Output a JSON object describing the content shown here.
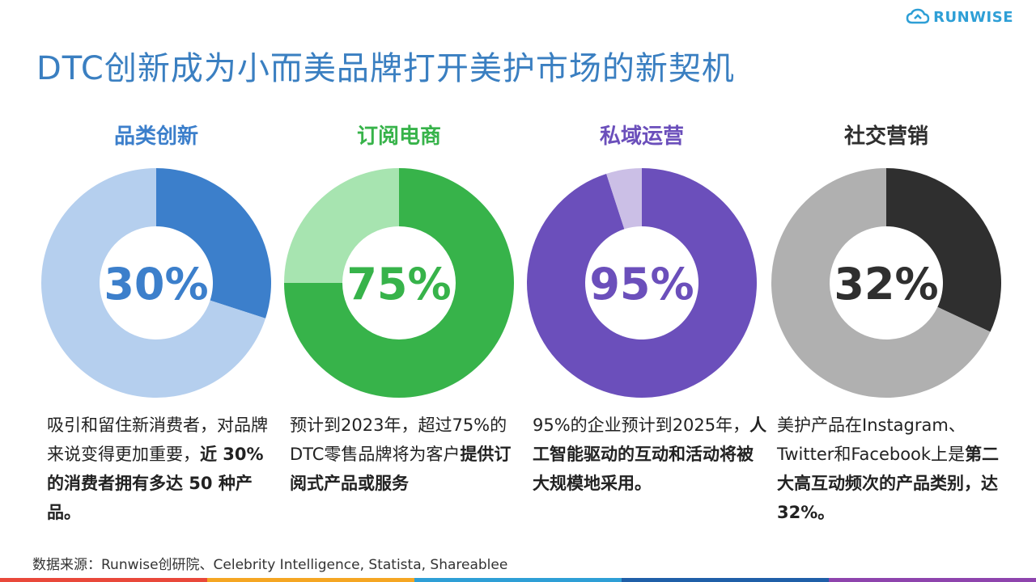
{
  "logo": {
    "text": "RUNWISE",
    "color": "#2e9fd6"
  },
  "title": {
    "text": "DTC创新成为小而美品牌打开美护市场的新契机",
    "color": "#3a7fc1"
  },
  "panels": [
    {
      "title": "品类创新",
      "percent_label": "30%",
      "accent": "#3c7fcb",
      "title_color": "#3c7fcb",
      "desc": [
        {
          "t": "吸引和留住新消费者，",
          "b": false
        },
        {
          "t": "对品牌来说变得更加",
          "b": false
        },
        {
          "t": "重要，",
          "b": false
        },
        {
          "t": "近 30% 的消费",
          "b": true
        },
        {
          "t": "者拥有多达 50 种产品。",
          "b": true
        }
      ]
    },
    {
      "title": "订阅电商",
      "percent_label": "75%",
      "accent": "#37b34a",
      "title_color": "#37b34a",
      "desc": [
        {
          "t": "预计到2023年，超过",
          "b": false
        },
        {
          "t": "75%的DTC零售品牌",
          "b": false
        },
        {
          "t": "将为客户",
          "b": false
        },
        {
          "t": "提供订阅式",
          "b": true
        },
        {
          "t": "产品或服务",
          "b": true
        }
      ]
    },
    {
      "title": "私域运营",
      "percent_label": "95%",
      "accent": "#6b4fbb",
      "title_color": "#6b4fbb",
      "desc": [
        {
          "t": "95%的企业预计到",
          "b": false
        },
        {
          "t": "2025年，",
          "b": false
        },
        {
          "t": "人工智能驱",
          "b": true
        },
        {
          "t": "动的互动和活动将被",
          "b": true
        },
        {
          "t": "大规模地采用。",
          "b": true
        }
      ]
    },
    {
      "title": "社交营销",
      "percent_label": "32%",
      "accent": "#2f2f2f",
      "title_color": "#2f2f2f",
      "desc": [
        {
          "t": "美护产品在Instagram、",
          "b": false
        },
        {
          "t": "Twitter和Facebook上",
          "b": false
        },
        {
          "t": "是",
          "b": false
        },
        {
          "t": "第二大高互动频次",
          "b": true
        },
        {
          "t": "的产品类别，达32%。",
          "b": true
        }
      ]
    }
  ],
  "chart_data": [
    {
      "type": "pie",
      "title": "品类创新",
      "labels": [
        "",
        ""
      ],
      "values": [
        30,
        70
      ],
      "colors": [
        "#3c7fcb",
        "#b5cfee"
      ]
    },
    {
      "type": "pie",
      "title": "订阅电商",
      "labels": [
        "",
        ""
      ],
      "values": [
        75,
        25
      ],
      "colors": [
        "#37b34a",
        "#a7e4b0"
      ]
    },
    {
      "type": "pie",
      "title": "私域运营",
      "labels": [
        "",
        ""
      ],
      "values": [
        95,
        5
      ],
      "colors": [
        "#6b4fbb",
        "#cbbfe6"
      ]
    },
    {
      "type": "pie",
      "title": "社交营销",
      "labels": [
        "",
        ""
      ],
      "values": [
        32,
        68
      ],
      "colors": [
        "#2f2f2f",
        "#b0b0b0"
      ]
    }
  ],
  "source": {
    "text": "数据来源：Runwise创研院、Celebrity Intelligence, Statista, Shareablee"
  },
  "bottom_bar_colors": [
    "#e9483a",
    "#f5a623",
    "#2e9fd6",
    "#1f5fa8",
    "#8e44ad"
  ]
}
